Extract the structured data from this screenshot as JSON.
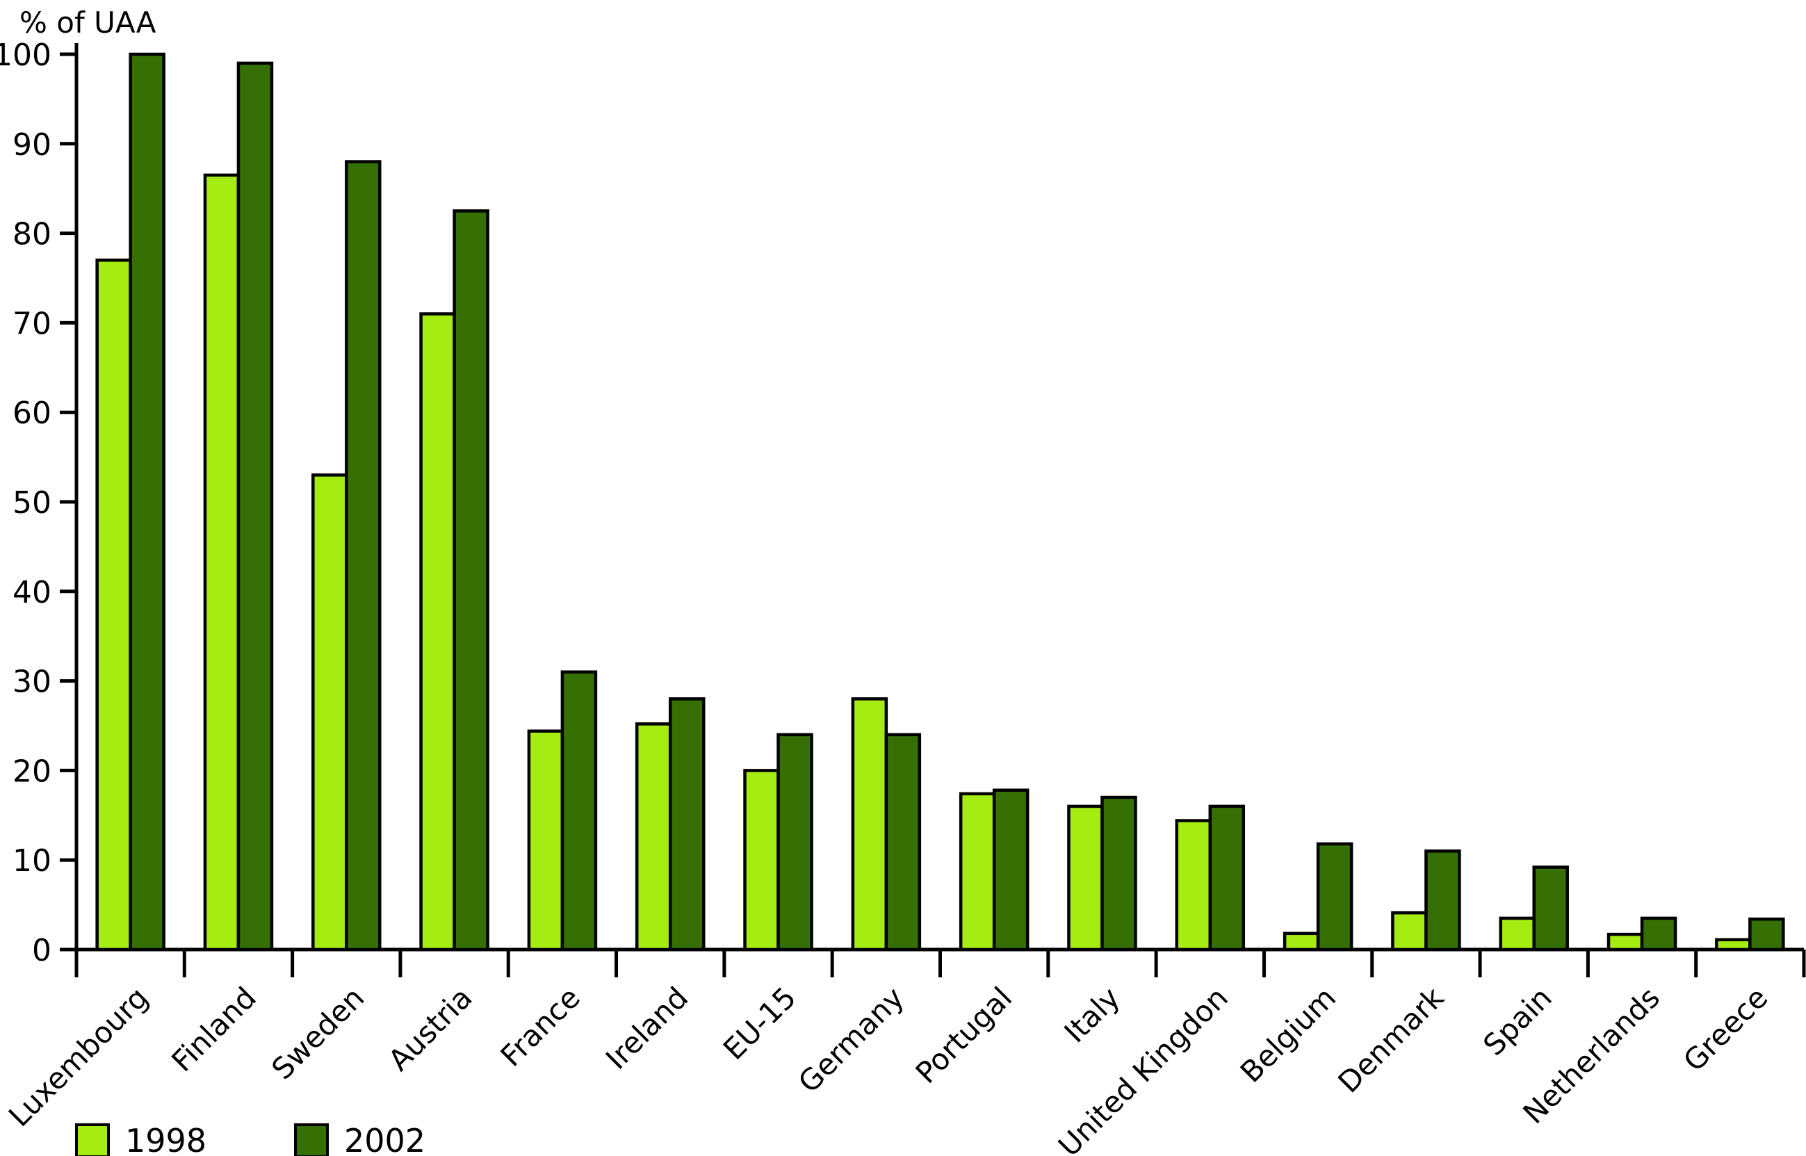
{
  "chart_data": {
    "type": "bar",
    "title": "",
    "ylabel": "% of UAA",
    "xlabel": "",
    "ylim": [
      0,
      100
    ],
    "ytick_step": 10,
    "grid": false,
    "legend_position": "bottom-left",
    "background_color": "#ffffff",
    "bar_outline_color": "#000000",
    "categories": [
      "Luxembourg",
      "Finland",
      "Sweden",
      "Austria",
      "France",
      "Ireland",
      "EU-15",
      "Germany",
      "Portugal",
      "Italy",
      "United Kingdon",
      "Belgium",
      "Denmark",
      "Spain",
      "Netherlands",
      "Greece"
    ],
    "series": [
      {
        "name": "1998",
        "color": "#a5ec13",
        "values": [
          77,
          86.5,
          53,
          71,
          24.4,
          25.2,
          20,
          28,
          17.4,
          16,
          14.4,
          1.8,
          4.1,
          3.5,
          1.7,
          1.1
        ]
      },
      {
        "name": "2002",
        "color": "#367004",
        "values": [
          100,
          99,
          88,
          82.5,
          31,
          28,
          24,
          24,
          17.8,
          17,
          16,
          11.8,
          11,
          9.2,
          3.5,
          3.4
        ]
      }
    ]
  }
}
